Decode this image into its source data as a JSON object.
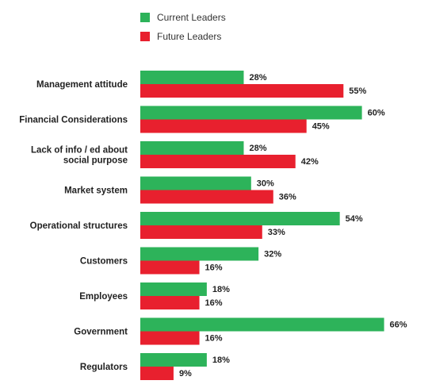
{
  "chart_data": {
    "type": "bar",
    "orientation": "horizontal",
    "categories": [
      [
        "Management attitude"
      ],
      [
        "Financial Considerations"
      ],
      [
        "Lack of info / ed about",
        "social purpose"
      ],
      [
        "Market system"
      ],
      [
        "Operational structures"
      ],
      [
        "Customers"
      ],
      [
        "Employees"
      ],
      [
        "Government"
      ],
      [
        "Regulators"
      ]
    ],
    "series": [
      {
        "name": "Current Leaders",
        "color": "#2db35a",
        "values": [
          28,
          60,
          28,
          30,
          54,
          32,
          18,
          66,
          18
        ],
        "labels": [
          "28%",
          "60%",
          "28%",
          "30%",
          "54%",
          "32%",
          "18%",
          "66%",
          "18%"
        ]
      },
      {
        "name": "Future Leaders",
        "color": "#e8202e",
        "values": [
          55,
          45,
          42,
          36,
          33,
          16,
          16,
          16,
          9
        ],
        "labels": [
          "55%",
          "45%",
          "42%",
          "36%",
          "33%",
          "16%",
          "16%",
          "16%",
          "9%"
        ]
      }
    ],
    "xlim": [
      0,
      100
    ],
    "legend_position": "top",
    "grid": false
  }
}
